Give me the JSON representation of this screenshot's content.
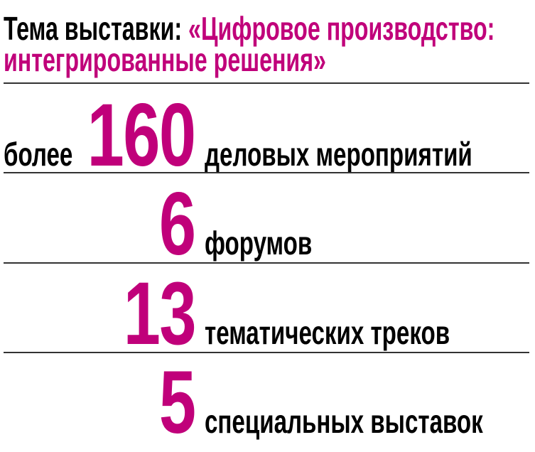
{
  "header": {
    "title_prefix": "Тема выставки: ",
    "title_accent_line1": "«Цифровое производство:",
    "title_accent_line2": "интегрированные решения»"
  },
  "accent_color": "#c0007a",
  "stats": [
    {
      "prefix": "более",
      "value": "160",
      "label": "деловых мероприятий"
    },
    {
      "value": "6",
      "label": "форумов"
    },
    {
      "value": "13",
      "label": "тематических треков"
    },
    {
      "value": "5",
      "label": "специальных выставок"
    }
  ]
}
